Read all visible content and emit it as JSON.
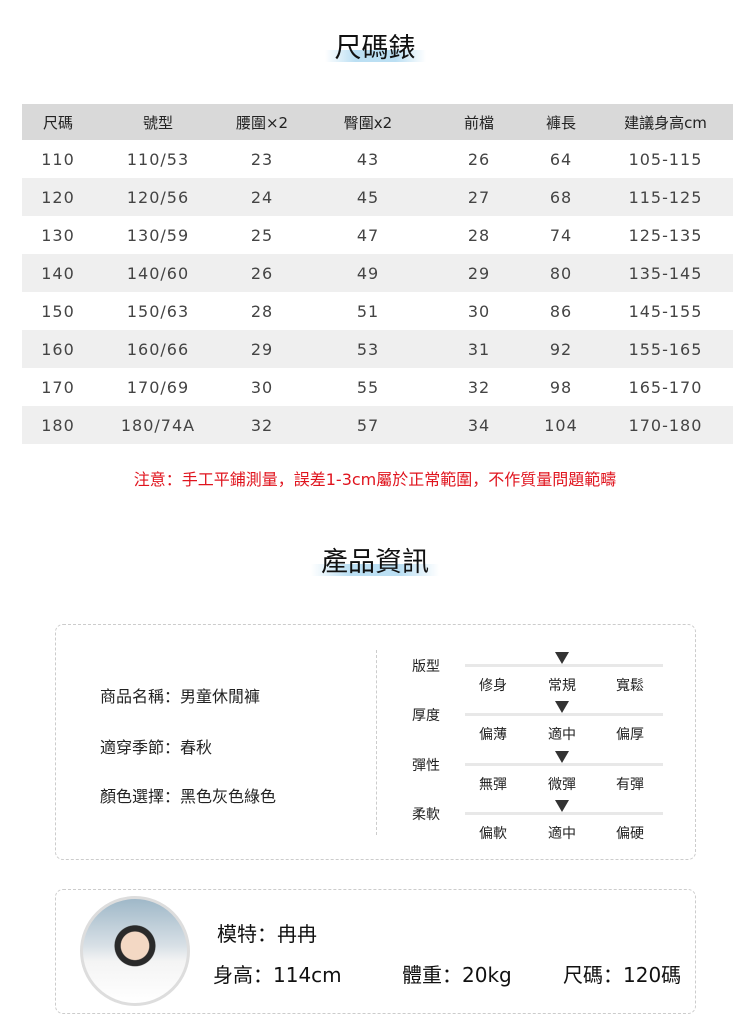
{
  "size_chart": {
    "title": "尺碼錶",
    "headers": [
      "尺碼",
      "號型",
      "腰圍×2",
      "臀圍x2",
      "前檔",
      "褲長",
      "建議身高cm"
    ],
    "rows": [
      [
        "110",
        "110/53",
        "23",
        "43",
        "26",
        "64",
        "105-115"
      ],
      [
        "120",
        "120/56",
        "24",
        "45",
        "27",
        "68",
        "115-125"
      ],
      [
        "130",
        "130/59",
        "25",
        "47",
        "28",
        "74",
        "125-135"
      ],
      [
        "140",
        "140/60",
        "26",
        "49",
        "29",
        "80",
        "135-145"
      ],
      [
        "150",
        "150/63",
        "28",
        "51",
        "30",
        "86",
        "145-155"
      ],
      [
        "160",
        "160/66",
        "29",
        "53",
        "31",
        "92",
        "155-165"
      ],
      [
        "170",
        "170/69",
        "30",
        "55",
        "32",
        "98",
        "165-170"
      ],
      [
        "180",
        "180/74A",
        "32",
        "57",
        "34",
        "104",
        "170-180"
      ]
    ],
    "note": "注意：手工平鋪測量，誤差1-3cm屬於正常範圍，不作質量問題範疇"
  },
  "product_info": {
    "title": "產品資訊",
    "lines": [
      "商品名稱：男童休閒褲",
      "適穿季節：春秋",
      "顏色選擇：黑色灰色綠色"
    ],
    "scales": [
      {
        "label": "版型",
        "options": [
          "修身",
          "常規",
          "寬鬆"
        ],
        "selected": 1
      },
      {
        "label": "厚度",
        "options": [
          "偏薄",
          "適中",
          "偏厚"
        ],
        "selected": 1
      },
      {
        "label": "彈性",
        "options": [
          "無彈",
          "微彈",
          "有彈"
        ],
        "selected": 1
      },
      {
        "label": "柔軟",
        "options": [
          "偏軟",
          "適中",
          "偏硬"
        ],
        "selected": 1
      }
    ]
  },
  "model": {
    "name": "模特：冉冉",
    "height": "身高：114cm",
    "weight": "體重：20kg",
    "size": "尺碼：120碼"
  },
  "colors": {
    "note": "#e0141e",
    "header_bg": "#d9d9d9",
    "alt_row": "#efefef"
  }
}
